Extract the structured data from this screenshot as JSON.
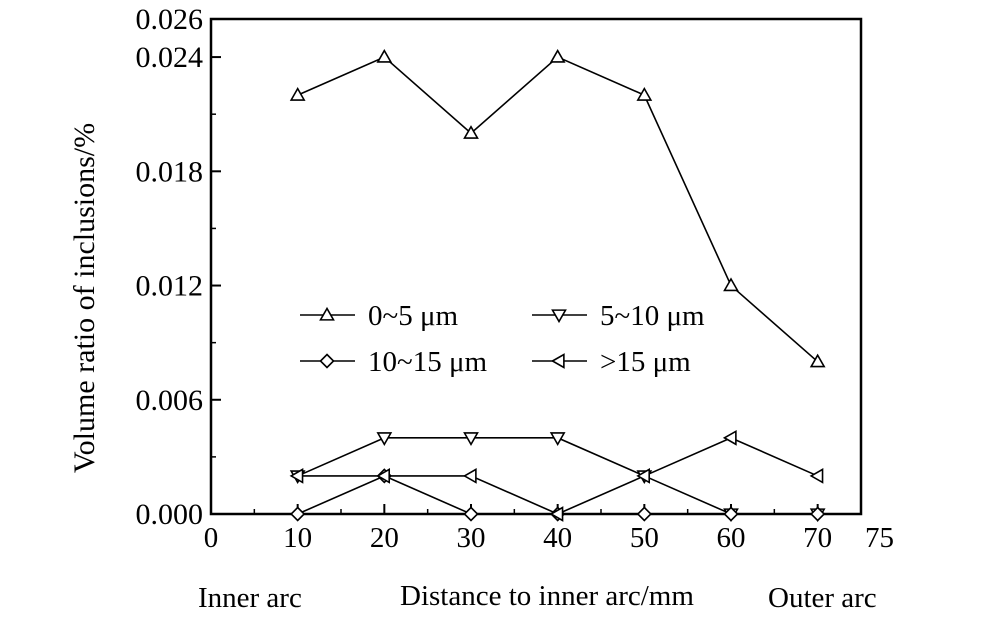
{
  "chart_data": {
    "type": "line",
    "xlabel": "Distance to inner arc/mm",
    "ylabel": "Volume ratio of inclusions/%",
    "xlim": [
      0,
      75
    ],
    "ylim": [
      0,
      0.026
    ],
    "x_ticks": [
      0,
      10,
      20,
      30,
      40,
      50,
      60,
      70,
      75
    ],
    "y_ticks": [
      "0.000",
      "0.006",
      "0.012",
      "0.018",
      "0.024",
      "0.026"
    ],
    "x": [
      10,
      20,
      30,
      40,
      50,
      60,
      70
    ],
    "grid": false,
    "legend_position": "center-left",
    "series": [
      {
        "name": "0~5 μm",
        "marker": "triangle-up",
        "values": [
          0.022,
          0.024,
          0.02,
          0.024,
          0.022,
          0.012,
          0.008
        ]
      },
      {
        "name": "5~10 μm",
        "marker": "triangle-down",
        "values": [
          0.002,
          0.004,
          0.004,
          0.004,
          0.002,
          0.0,
          0.0
        ]
      },
      {
        "name": "10~15 μm",
        "marker": "diamond",
        "values": [
          0.0,
          0.002,
          0.0,
          0.0,
          0.0,
          0.0,
          0.0
        ]
      },
      {
        "name": ">15 μm",
        "marker": "triangle-left",
        "values": [
          0.002,
          0.002,
          0.002,
          0.0,
          0.002,
          0.004,
          0.002
        ]
      }
    ],
    "annotations": {
      "left": "Inner arc",
      "right": "Outer arc"
    }
  }
}
